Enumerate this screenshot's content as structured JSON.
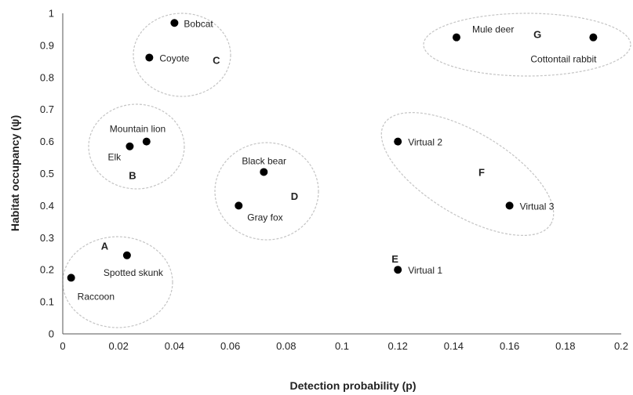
{
  "chart_data": {
    "type": "scatter",
    "title": "",
    "xlabel": "Detection probability (p)",
    "ylabel": "Habitat occupancy (ψ)",
    "xlim": [
      0,
      0.2
    ],
    "ylim": [
      0,
      1
    ],
    "x_ticks": [
      "0",
      "0.02",
      "0.04",
      "0.06",
      "0.08",
      "0.1",
      "0.12",
      "0.14",
      "0.16",
      "0.18",
      "0.2"
    ],
    "y_ticks": [
      "0",
      "0.1",
      "0.2",
      "0.3",
      "0.4",
      "0.5",
      "0.6",
      "0.7",
      "0.8",
      "0.9",
      "1"
    ],
    "grid": false,
    "marker_color": "#000000",
    "cluster_outline_color": "#c4c4c4",
    "points": [
      {
        "label": "Raccoon",
        "x": 0.003,
        "y": 0.175
      },
      {
        "label": "Spotted skunk",
        "x": 0.023,
        "y": 0.245
      },
      {
        "label": "Elk",
        "x": 0.024,
        "y": 0.585
      },
      {
        "label": "Mountain lion",
        "x": 0.03,
        "y": 0.6
      },
      {
        "label": "Bobcat",
        "x": 0.04,
        "y": 0.97
      },
      {
        "label": "Coyote",
        "x": 0.031,
        "y": 0.862
      },
      {
        "label": "Gray fox",
        "x": 0.063,
        "y": 0.4
      },
      {
        "label": "Black bear",
        "x": 0.072,
        "y": 0.505
      },
      {
        "label": "Virtual 1",
        "x": 0.12,
        "y": 0.2
      },
      {
        "label": "Virtual 2",
        "x": 0.12,
        "y": 0.6
      },
      {
        "label": "Virtual 3",
        "x": 0.16,
        "y": 0.4
      },
      {
        "label": "Mule deer",
        "x": 0.141,
        "y": 0.925
      },
      {
        "label": "Cottontail rabbit",
        "x": 0.19,
        "y": 0.925
      }
    ],
    "groups": [
      {
        "label": "A",
        "members": [
          "Raccoon",
          "Spotted skunk"
        ]
      },
      {
        "label": "B",
        "members": [
          "Elk",
          "Mountain lion"
        ]
      },
      {
        "label": "C",
        "members": [
          "Bobcat",
          "Coyote"
        ]
      },
      {
        "label": "D",
        "members": [
          "Gray fox",
          "Black bear"
        ]
      },
      {
        "label": "E",
        "members": [
          "Virtual 1"
        ]
      },
      {
        "label": "F",
        "members": [
          "Virtual 2",
          "Virtual 3"
        ]
      },
      {
        "label": "G",
        "members": [
          "Mule deer",
          "Cottontail rabbit"
        ]
      }
    ]
  }
}
